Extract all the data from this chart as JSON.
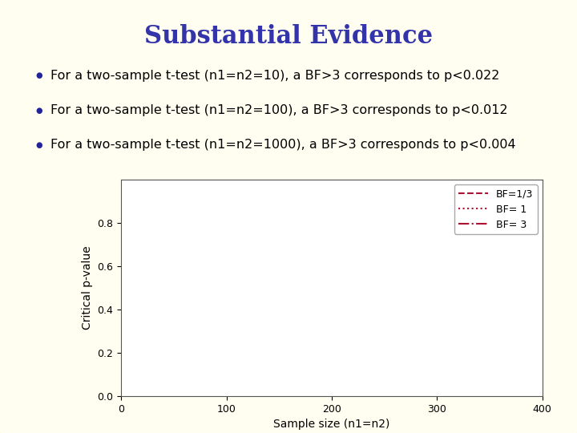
{
  "title": "Substantial Evidence",
  "title_color": "#3333aa",
  "title_fontsize": 22,
  "title_fontweight": "bold",
  "bg_color": "#fffef0",
  "border_color": "#e8e040",
  "border_linewidth": 5,
  "bullet_color": "#222299",
  "bullet_fontsize": 11.5,
  "bullets": [
    "For a two-sample t-test (n1=n2=10), a BF>3 corresponds to p<0.022",
    "For a two-sample t-test (n1=n2=100), a BF>3 corresponds to p<0.012",
    "For a two-sample t-test (n1=n2=1000), a BF>3 corresponds to p<0.004"
  ],
  "line_color": "#aa1133",
  "xlabel": "Sample size (n1=n2)",
  "ylabel": "Critical p-value",
  "xlim": [
    0,
    400
  ],
  "ylim": [
    0,
    1.0
  ],
  "yticks": [
    0,
    0.2,
    0.4,
    0.6,
    0.8
  ],
  "xticks": [
    0,
    100,
    200,
    300,
    400
  ],
  "legend_labels": [
    "BF=1/3",
    "BF= 1",
    "BF= 3"
  ],
  "legend_linestyles": [
    "--",
    ":",
    "-."
  ],
  "plot_bg": "#ffffff",
  "axis_fontsize": 10,
  "legend_fontsize": 9
}
